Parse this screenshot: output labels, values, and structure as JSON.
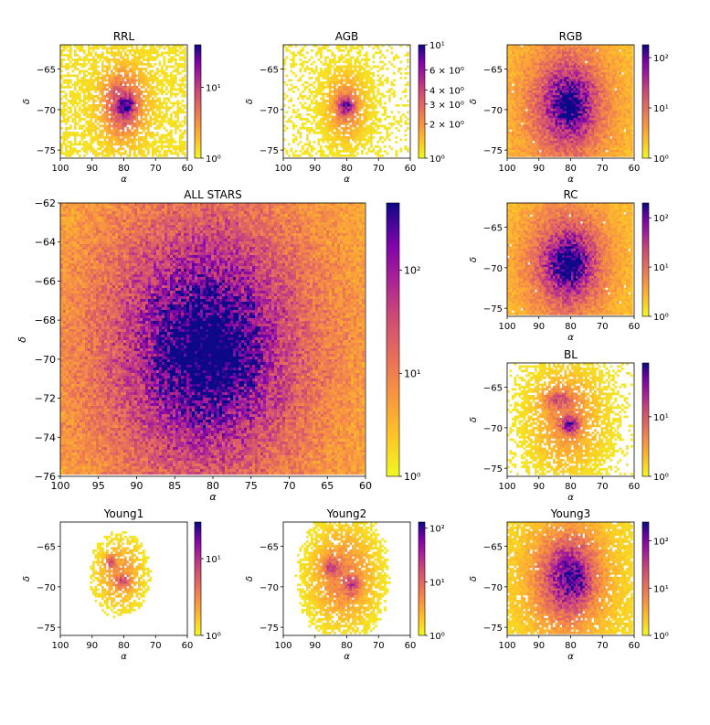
{
  "chart_data": [
    {
      "type": "heatmap",
      "title": "RRL",
      "xlabel": "α",
      "ylabel": "δ",
      "xlim": [
        100,
        60
      ],
      "ylim": [
        -76,
        -62
      ],
      "xticks": [
        "100",
        "90",
        "80",
        "70",
        "60"
      ],
      "xtick_values": [
        100,
        90,
        80,
        70,
        60
      ],
      "yticks": [
        "−65",
        "−70",
        "−75"
      ],
      "ytick_values": [
        -65,
        -70,
        -75
      ],
      "colorbar": {
        "scale": "log",
        "ticks": [
          "10⁰",
          "10¹"
        ],
        "tick_values": [
          1,
          10
        ],
        "max": 40
      },
      "blobs": [
        {
          "x": 80,
          "y": -69.5,
          "rx": 8,
          "ry": 5,
          "w": 0.55
        },
        {
          "x": 79,
          "y": -69.6,
          "rx": 3.2,
          "ry": 1.2,
          "w": 0.45
        }
      ],
      "density_floor": 0.35,
      "background_noise": 0.08
    },
    {
      "type": "heatmap",
      "title": "AGB",
      "xlabel": "α",
      "ylabel": "δ",
      "xlim": [
        100,
        60
      ],
      "ylim": [
        -76,
        -62
      ],
      "xticks": [
        "100",
        "90",
        "80",
        "70",
        "60"
      ],
      "xtick_values": [
        100,
        90,
        80,
        70,
        60
      ],
      "yticks": [
        "−65",
        "−70",
        "−75"
      ],
      "ytick_values": [
        -65,
        -70,
        -75
      ],
      "colorbar": {
        "scale": "log",
        "ticks": [
          "10⁰",
          "2 × 10⁰",
          "3 × 10⁰",
          "4 × 10⁰",
          "6 × 10⁰",
          "10¹"
        ],
        "tick_values": [
          1,
          2,
          3,
          4,
          6,
          10
        ],
        "max": 10
      },
      "blobs": [
        {
          "x": 80,
          "y": -69.8,
          "rx": 7,
          "ry": 4.5,
          "w": 0.35
        },
        {
          "x": 80,
          "y": -69.7,
          "rx": 3,
          "ry": 1.3,
          "w": 0.5
        }
      ],
      "density_floor": 0.25,
      "background_noise": 0.06
    },
    {
      "type": "heatmap",
      "title": "RGB",
      "xlabel": "α",
      "ylabel": "δ",
      "xlim": [
        100,
        60
      ],
      "ylim": [
        -76,
        -62
      ],
      "xticks": [
        "100",
        "90",
        "80",
        "70",
        "60"
      ],
      "xtick_values": [
        100,
        90,
        80,
        70,
        60
      ],
      "yticks": [
        "−65",
        "−70",
        "−75"
      ],
      "ytick_values": [
        -65,
        -70,
        -75
      ],
      "colorbar": {
        "scale": "log",
        "ticks": [
          "10⁰",
          "10¹",
          "10²"
        ],
        "tick_values": [
          1,
          10,
          100
        ],
        "max": 180
      },
      "blobs": [
        {
          "x": 81,
          "y": -69.5,
          "rx": 17,
          "ry": 9.5,
          "w": 0.45
        },
        {
          "x": 80,
          "y": -69.5,
          "rx": 9,
          "ry": 5,
          "w": 0.4
        },
        {
          "x": 80,
          "y": -69.6,
          "rx": 3.5,
          "ry": 1.6,
          "w": 0.25
        }
      ],
      "density_floor": 0.02,
      "background_noise": 0.2
    },
    {
      "type": "heatmap",
      "title": "ALL STARS",
      "xlabel": "α",
      "ylabel": "δ",
      "xlim": [
        100,
        60
      ],
      "ylim": [
        -76,
        -62
      ],
      "xticks": [
        "100",
        "95",
        "90",
        "85",
        "80",
        "75",
        "70",
        "65",
        "60"
      ],
      "xtick_values": [
        100,
        95,
        90,
        85,
        80,
        75,
        70,
        65,
        60
      ],
      "yticks": [
        "−62",
        "−64",
        "−66",
        "−68",
        "−70",
        "−72",
        "−74",
        "−76"
      ],
      "ytick_values": [
        -62,
        -64,
        -66,
        -68,
        -70,
        -72,
        -74,
        -76
      ],
      "colorbar": {
        "scale": "log",
        "ticks": [
          "10⁰",
          "10¹",
          "10²"
        ],
        "tick_values": [
          1,
          10,
          100
        ],
        "max": 450
      },
      "blobs": [
        {
          "x": 81,
          "y": -69.5,
          "rx": 20,
          "ry": 10.5,
          "w": 0.5
        },
        {
          "x": 81,
          "y": -69.5,
          "rx": 11,
          "ry": 6,
          "w": 0.35
        },
        {
          "x": 80,
          "y": -69.7,
          "rx": 6,
          "ry": 2.5,
          "w": 0.2
        }
      ],
      "density_floor": 0.0,
      "background_noise": 0.25
    },
    {
      "type": "heatmap",
      "title": "RC",
      "xlabel": "α",
      "ylabel": "δ",
      "xlim": [
        100,
        60
      ],
      "ylim": [
        -76,
        -62
      ],
      "xticks": [
        "100",
        "90",
        "80",
        "70",
        "60"
      ],
      "xtick_values": [
        100,
        90,
        80,
        70,
        60
      ],
      "yticks": [
        "−65",
        "−70",
        "−75"
      ],
      "ytick_values": [
        -65,
        -70,
        -75
      ],
      "colorbar": {
        "scale": "log",
        "ticks": [
          "10⁰",
          "10¹",
          "10²"
        ],
        "tick_values": [
          1,
          10,
          100
        ],
        "max": 200
      },
      "blobs": [
        {
          "x": 81,
          "y": -69.5,
          "rx": 16,
          "ry": 9,
          "w": 0.5
        },
        {
          "x": 80,
          "y": -69.6,
          "rx": 8,
          "ry": 4.2,
          "w": 0.4
        },
        {
          "x": 80,
          "y": -69.6,
          "rx": 3.5,
          "ry": 1.5,
          "w": 0.2
        }
      ],
      "density_floor": 0.02,
      "background_noise": 0.2
    },
    {
      "type": "heatmap",
      "title": "BL",
      "xlabel": "α",
      "ylabel": "δ",
      "xlim": [
        100,
        60
      ],
      "ylim": [
        -76,
        -62
      ],
      "xticks": [
        "100",
        "90",
        "80",
        "70",
        "60"
      ],
      "xtick_values": [
        100,
        90,
        80,
        70,
        60
      ],
      "yticks": [
        "−65",
        "−70",
        "−75"
      ],
      "ytick_values": [
        -65,
        -70,
        -75
      ],
      "colorbar": {
        "scale": "log",
        "ticks": [
          "10⁰",
          "10¹"
        ],
        "tick_values": [
          1,
          10
        ],
        "max": 80
      },
      "blobs": [
        {
          "x": 81,
          "y": -69.0,
          "rx": 12,
          "ry": 7,
          "w": 0.3
        },
        {
          "x": 80,
          "y": -69.8,
          "rx": 3.5,
          "ry": 1.3,
          "w": 0.55
        },
        {
          "x": 84,
          "y": -66.5,
          "rx": 6,
          "ry": 1.5,
          "w": 0.3
        }
      ],
      "density_floor": 0.3,
      "background_noise": 0.05
    },
    {
      "type": "heatmap",
      "title": "Young1",
      "xlabel": "α",
      "ylabel": "δ",
      "xlim": [
        100,
        60
      ],
      "ylim": [
        -76,
        -62
      ],
      "xticks": [
        "100",
        "90",
        "80",
        "70",
        "60"
      ],
      "xtick_values": [
        100,
        90,
        80,
        70,
        60
      ],
      "yticks": [
        "−65",
        "−70",
        "−75"
      ],
      "ytick_values": [
        -65,
        -70,
        -75
      ],
      "colorbar": {
        "scale": "log",
        "ticks": [
          "10⁰",
          "10¹"
        ],
        "tick_values": [
          1,
          10
        ],
        "max": 30
      },
      "blobs": [
        {
          "x": 81,
          "y": -68.5,
          "rx": 9,
          "ry": 5,
          "w": 0.3
        },
        {
          "x": 84,
          "y": -67.0,
          "rx": 2,
          "ry": 1,
          "w": 0.35
        },
        {
          "x": 80,
          "y": -69.5,
          "rx": 3,
          "ry": 1,
          "w": 0.3
        }
      ],
      "density_floor": 0.45,
      "background_noise": 0.0
    },
    {
      "type": "heatmap",
      "title": "Young2",
      "xlabel": "α",
      "ylabel": "δ",
      "xlim": [
        100,
        60
      ],
      "ylim": [
        -76,
        -62
      ],
      "xticks": [
        "100",
        "90",
        "80",
        "70",
        "60"
      ],
      "xtick_values": [
        100,
        90,
        80,
        70,
        60
      ],
      "yticks": [
        "−65",
        "−70",
        "−75"
      ],
      "ytick_values": [
        -65,
        -70,
        -75
      ],
      "colorbar": {
        "scale": "log",
        "ticks": [
          "10⁰",
          "10¹",
          "10²"
        ],
        "tick_values": [
          1,
          10,
          100
        ],
        "max": 130
      },
      "blobs": [
        {
          "x": 81,
          "y": -68.8,
          "rx": 12,
          "ry": 7,
          "w": 0.35
        },
        {
          "x": 85,
          "y": -67.5,
          "rx": 3,
          "ry": 1.5,
          "w": 0.3
        },
        {
          "x": 78,
          "y": -70.0,
          "rx": 3,
          "ry": 1.5,
          "w": 0.3
        }
      ],
      "density_floor": 0.3,
      "background_noise": 0.02
    },
    {
      "type": "heatmap",
      "title": "Young3",
      "xlabel": "α",
      "ylabel": "δ",
      "xlim": [
        100,
        60
      ],
      "ylim": [
        -76,
        -62
      ],
      "xticks": [
        "100",
        "90",
        "80",
        "70",
        "60"
      ],
      "xtick_values": [
        100,
        90,
        80,
        70,
        60
      ],
      "yticks": [
        "−65",
        "−70",
        "−75"
      ],
      "ytick_values": [
        -65,
        -70,
        -75
      ],
      "colorbar": {
        "scale": "log",
        "ticks": [
          "10⁰",
          "10¹",
          "10²"
        ],
        "tick_values": [
          1,
          10,
          100
        ],
        "max": 250
      },
      "blobs": [
        {
          "x": 81,
          "y": -69.0,
          "rx": 15,
          "ry": 8.5,
          "w": 0.45
        },
        {
          "x": 80,
          "y": -68.8,
          "rx": 9,
          "ry": 5,
          "w": 0.35
        },
        {
          "x": 78,
          "y": -69.5,
          "rx": 4,
          "ry": 2,
          "w": 0.2
        }
      ],
      "density_floor": 0.15,
      "background_noise": 0.1
    }
  ]
}
